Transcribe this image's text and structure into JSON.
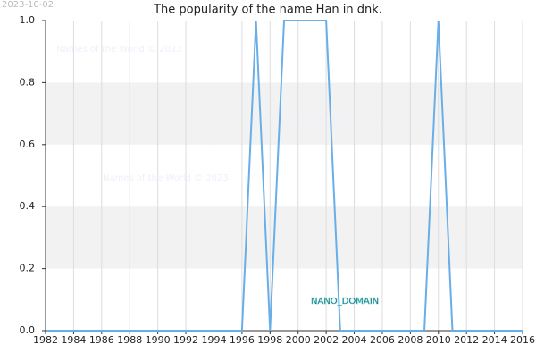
{
  "chart_data": {
    "type": "line",
    "title": "The popularity of the name Han in dnk.",
    "date_stamp": "2023-10-02",
    "annotations": [
      "Names of the World © 2023",
      "Names of the World © 2023",
      "Names of the World © 2023",
      "NANO_DOMAIN"
    ],
    "x": [
      1982,
      1983,
      1984,
      1985,
      1986,
      1987,
      1988,
      1989,
      1990,
      1991,
      1992,
      1993,
      1994,
      1995,
      1996,
      1997,
      1998,
      1999,
      2000,
      2001,
      2002,
      2003,
      2004,
      2005,
      2006,
      2007,
      2008,
      2009,
      2010,
      2011,
      2012,
      2013,
      2014,
      2015,
      2016
    ],
    "series": [
      {
        "color": "#6aaee8",
        "values": [
          0,
          0,
          0,
          0,
          0,
          0,
          0,
          0,
          0,
          0,
          0,
          0,
          0,
          0,
          0,
          1,
          0,
          1,
          1,
          1,
          1,
          0,
          0,
          0,
          0,
          0,
          0,
          0,
          1,
          0,
          0,
          0,
          0,
          0,
          0
        ]
      }
    ],
    "xlim": [
      1982,
      2016
    ],
    "xticks": [
      1982,
      1984,
      1986,
      1988,
      1990,
      1992,
      1994,
      1996,
      1998,
      2000,
      2002,
      2004,
      2006,
      2008,
      2010,
      2012,
      2014,
      2016
    ],
    "ylim": [
      0,
      1
    ],
    "yticks": [
      {
        "value": 0,
        "label": "0.0"
      },
      0.2,
      0.4,
      0.6,
      0.8,
      {
        "value": 1,
        "label": "1.0"
      }
    ],
    "grid": true,
    "bands": true
  }
}
